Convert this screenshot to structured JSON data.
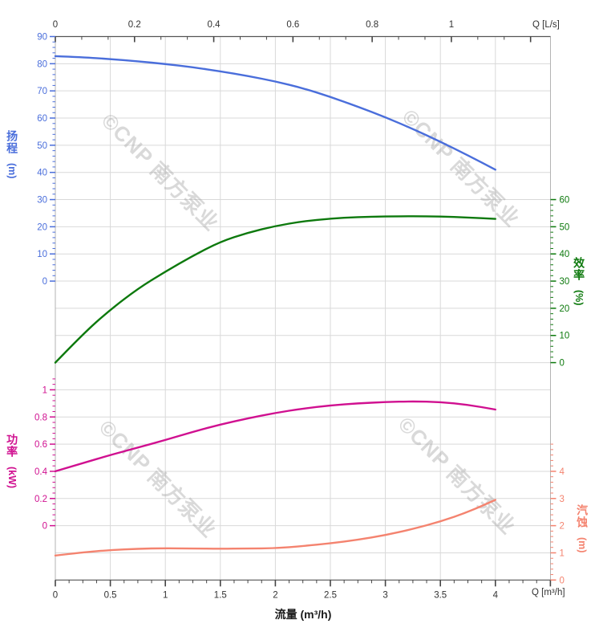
{
  "watermark": {
    "text": "©CNP 南方泵业",
    "color": "rgba(160,160,160,0.40)"
  },
  "axes": {
    "top": {
      "unit_label": "Q [L/s]",
      "tick_labels": [
        "0",
        "0.2",
        "0.4",
        "0.6",
        "0.8",
        "1"
      ]
    },
    "bottom": {
      "unit_label": "Q [m³/h]",
      "axis_title": "流量 (m³/h)",
      "tick_labels": [
        "0",
        "0.5",
        "1",
        "1.5",
        "2",
        "2.5",
        "3",
        "3.5",
        "4"
      ]
    },
    "head": {
      "title": "扬程",
      "unit": "(m)",
      "color": "#4a6edb",
      "tick_labels": [
        "90",
        "80",
        "70",
        "60",
        "50",
        "40",
        "30",
        "20",
        "10",
        "0"
      ]
    },
    "efficiency": {
      "title": "效率",
      "unit": "(%)",
      "color": "#0d790d",
      "tick_labels": [
        "60",
        "50",
        "40",
        "30",
        "20",
        "10",
        "0"
      ]
    },
    "power": {
      "title": "功率",
      "unit": "(kW)",
      "color": "#d01090",
      "tick_labels": [
        "1",
        "0.8",
        "0.6",
        "0.4",
        "0.2",
        "0"
      ]
    },
    "npsh": {
      "title": "汽蚀",
      "unit": "(m)",
      "color": "#f4836f",
      "tick_labels": [
        "4",
        "3",
        "2",
        "1",
        "0"
      ]
    }
  },
  "chart_data": {
    "type": "line",
    "x_label": "流量 (m³/h)",
    "x_secondary_label": "Q [L/s]",
    "x": [
      0,
      0.25,
      0.5,
      0.75,
      1,
      1.25,
      1.5,
      1.75,
      2,
      2.25,
      2.5,
      2.75,
      3,
      3.25,
      3.5,
      3.75,
      4
    ],
    "series": [
      {
        "name": "扬程",
        "unit": "m",
        "axis": "head",
        "color": "#4a6edb",
        "values": [
          82.8,
          82.4,
          81.7,
          80.9,
          79.9,
          78.7,
          77.2,
          75.5,
          73.5,
          71.0,
          67.8,
          64.2,
          60.3,
          56.0,
          51.3,
          46.3,
          41.0
        ]
      },
      {
        "name": "效率",
        "unit": "%",
        "axis": "efficiency",
        "color": "#0d790d",
        "values": [
          0,
          10.5,
          19.5,
          27.2,
          33.5,
          39.3,
          44.5,
          47.8,
          50.3,
          52.0,
          53.0,
          53.6,
          53.8,
          53.9,
          53.8,
          53.4,
          52.9
        ]
      },
      {
        "name": "功率",
        "unit": "kW",
        "axis": "power",
        "color": "#d01090",
        "values": [
          0.4,
          0.46,
          0.52,
          0.575,
          0.63,
          0.69,
          0.745,
          0.79,
          0.83,
          0.862,
          0.885,
          0.9,
          0.91,
          0.915,
          0.91,
          0.89,
          0.855
        ]
      },
      {
        "name": "汽蚀",
        "unit": "m",
        "axis": "npsh",
        "color": "#f4836f",
        "values": [
          0.9,
          1.02,
          1.1,
          1.15,
          1.17,
          1.16,
          1.15,
          1.16,
          1.17,
          1.25,
          1.35,
          1.48,
          1.65,
          1.88,
          2.15,
          2.5,
          2.95
        ]
      }
    ],
    "axis_ranges": {
      "x_m3h": [
        0,
        4.5
      ],
      "x_ls": [
        0,
        1.25
      ],
      "head_m": [
        0,
        90
      ],
      "efficiency_pct": [
        0,
        60
      ],
      "power_kw": [
        0,
        1
      ],
      "npsh_m": [
        0,
        4
      ]
    },
    "grid": true,
    "legend": "none"
  }
}
